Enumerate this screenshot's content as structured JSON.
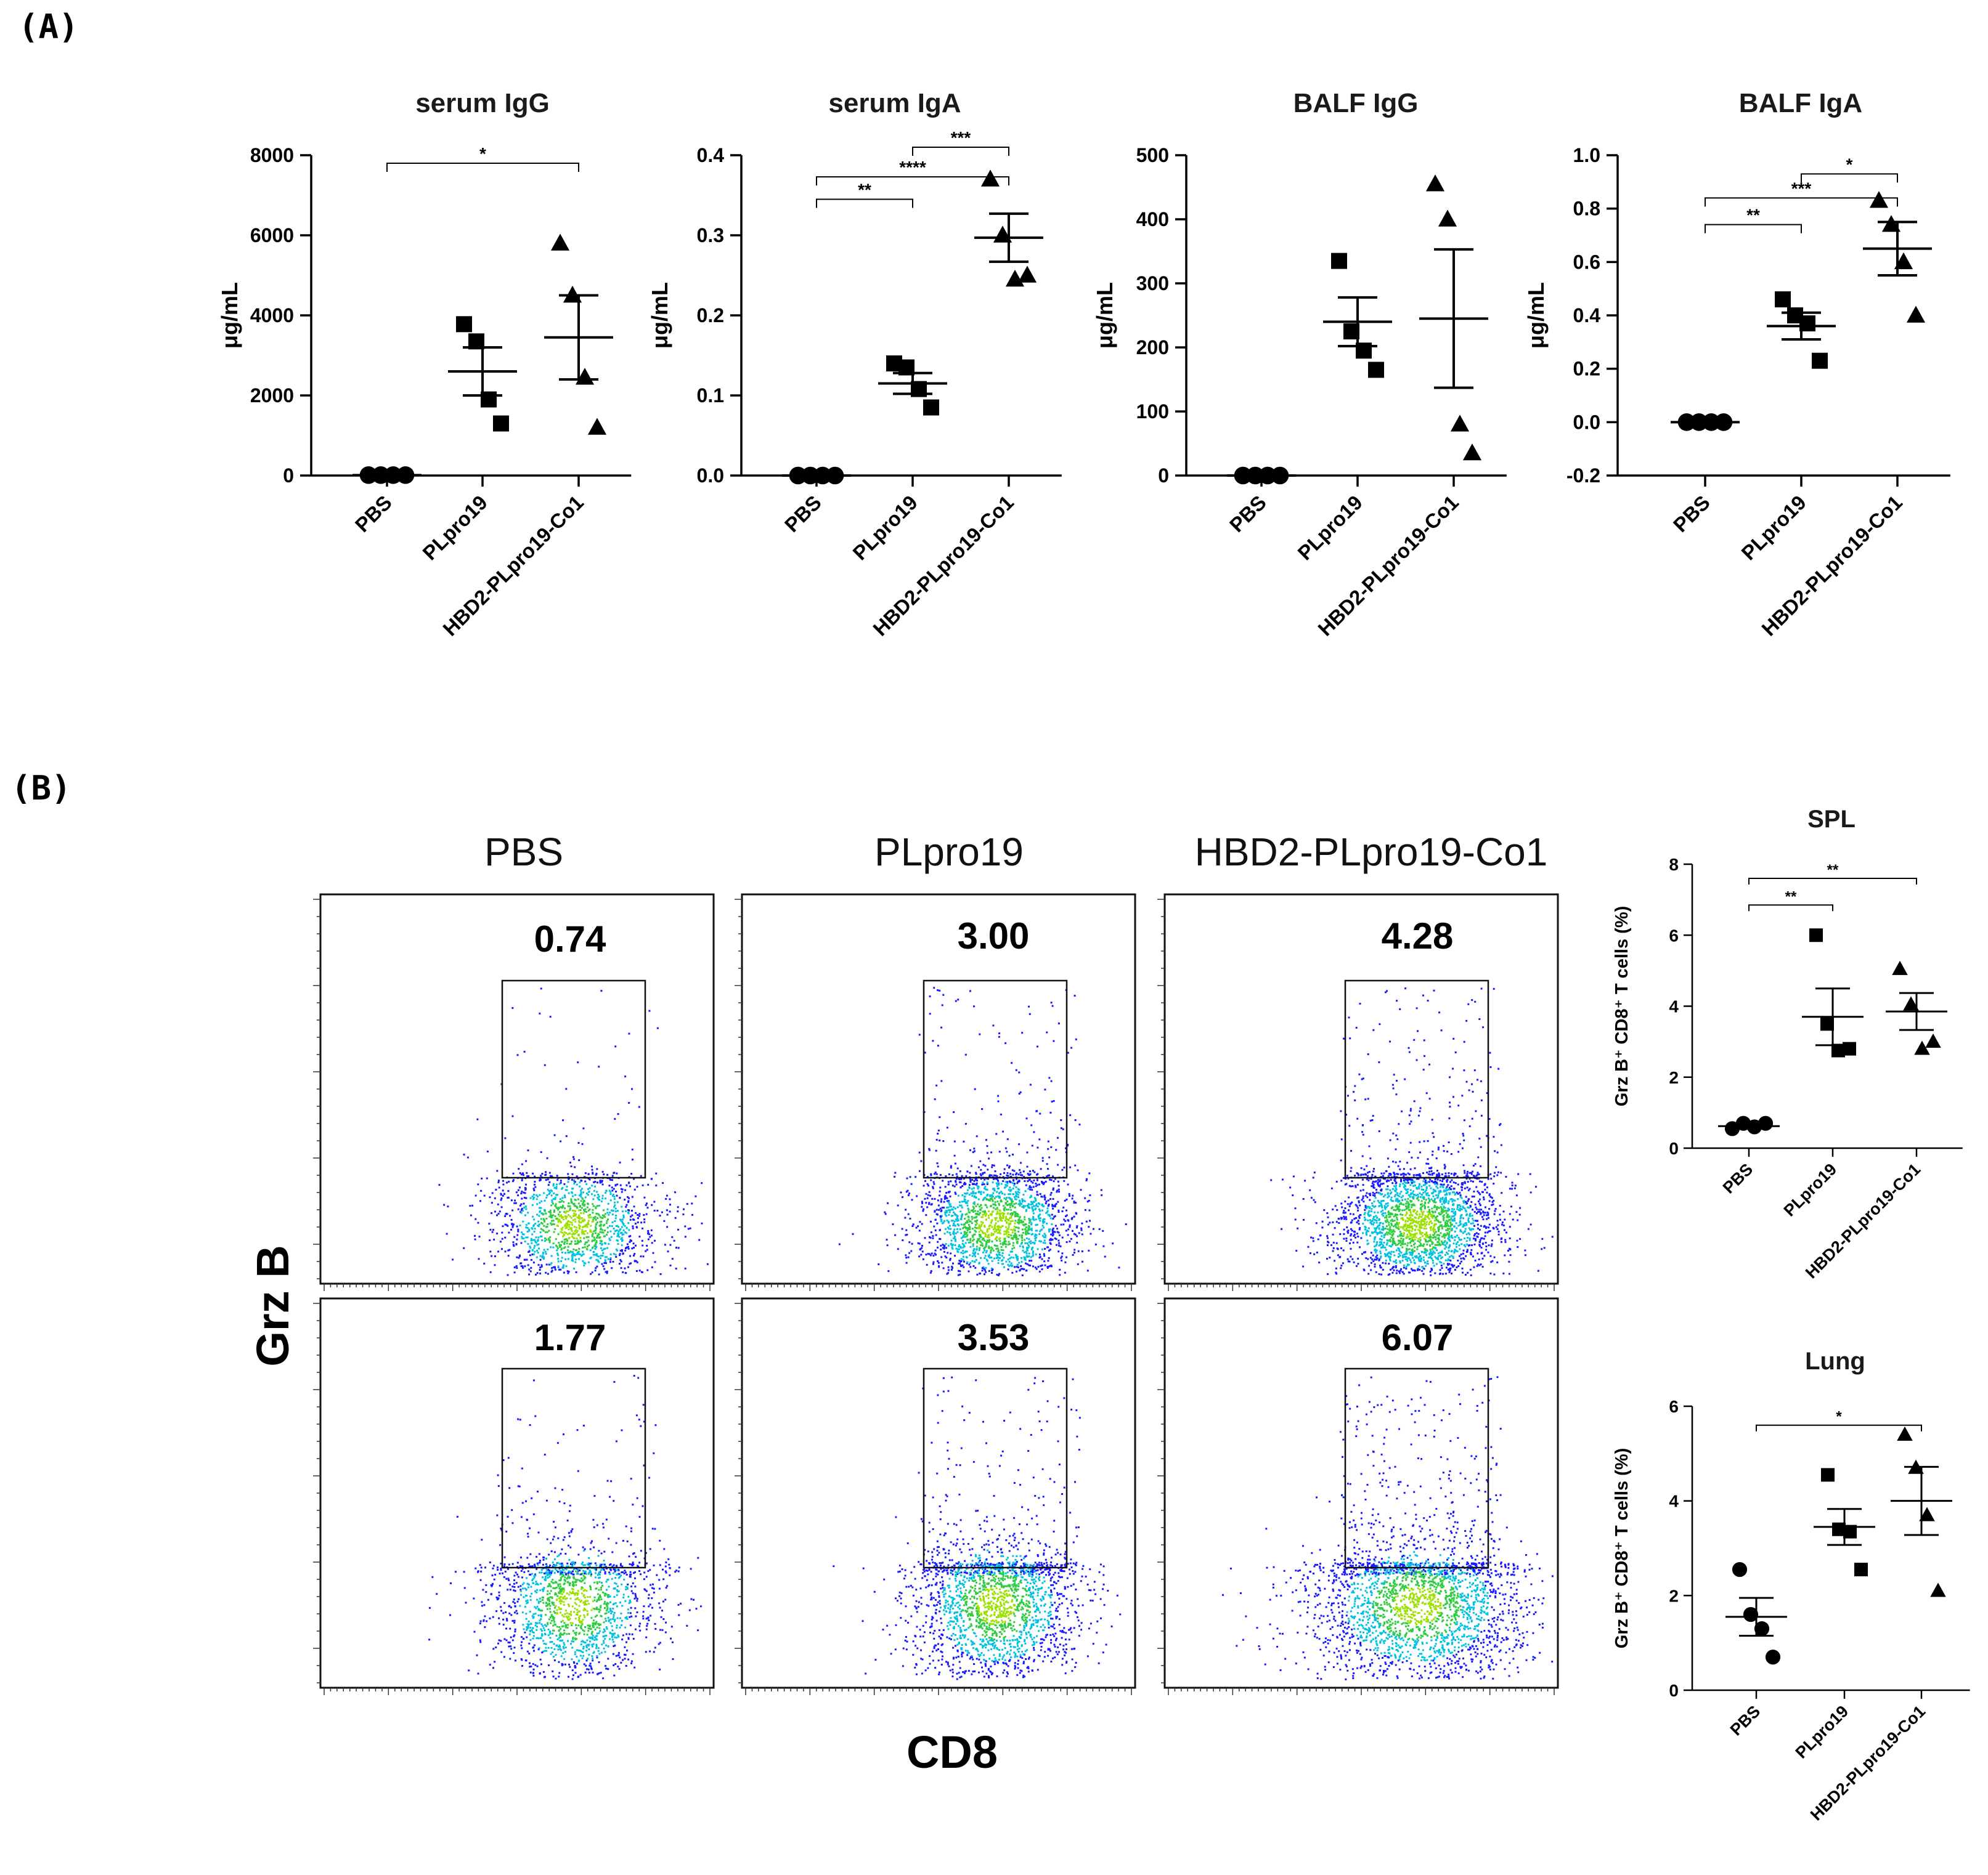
{
  "panel_labels": {
    "a": "(A)",
    "b": "(B)"
  },
  "groups": [
    "PBS",
    "PLpro19",
    "HBD2-PLpro19-Co1"
  ],
  "chart_data": [
    {
      "type": "scatter",
      "id": "serum-igg",
      "title": "serum IgG",
      "ylabel": "μg/mL",
      "categories": [
        "PBS",
        "PLpro19",
        "HBD2-PLpro19-Co1"
      ],
      "ylim": [
        0,
        8000
      ],
      "yticks": [
        "0",
        "2000",
        "4000",
        "6000",
        "8000"
      ],
      "yticks_values": [
        0,
        2000,
        4000,
        6000,
        8000
      ],
      "markers": [
        "circle",
        "square",
        "triangle"
      ],
      "points": [
        [
          10,
          10,
          10,
          10
        ],
        [
          3780,
          3350,
          1900,
          1300
        ],
        [
          5800,
          4500,
          2450,
          1200
        ]
      ],
      "mean": [
        10,
        2600,
        3450
      ],
      "sem": [
        0,
        600,
        1050
      ],
      "significance": [
        {
          "from": 0,
          "to": 2,
          "label": "*",
          "y": 7800
        }
      ]
    },
    {
      "type": "scatter",
      "id": "serum-iga",
      "title": "serum IgA",
      "ylabel": "μg/mL",
      "categories": [
        "PBS",
        "PLpro19",
        "HBD2-PLpro19-Co1"
      ],
      "ylim": [
        0,
        0.4
      ],
      "yticks": [
        "0.0",
        "0.1",
        "0.2",
        "0.3",
        "0.4"
      ],
      "yticks_values": [
        0,
        0.1,
        0.2,
        0.3,
        0.4
      ],
      "markers": [
        "circle",
        "square",
        "triangle"
      ],
      "points": [
        [
          0.0,
          0.0,
          0.0,
          0.0
        ],
        [
          0.14,
          0.135,
          0.108,
          0.085
        ],
        [
          0.37,
          0.3,
          0.245,
          0.25
        ]
      ],
      "mean": [
        0.0,
        0.115,
        0.297
      ],
      "sem": [
        0,
        0.013,
        0.03
      ],
      "significance": [
        {
          "from": 1,
          "to": 2,
          "label": "***",
          "y": 0.41
        },
        {
          "from": 0,
          "to": 2,
          "label": "****",
          "y": 0.373
        },
        {
          "from": 0,
          "to": 1,
          "label": "**",
          "y": 0.345
        }
      ]
    },
    {
      "type": "scatter",
      "id": "balf-igg",
      "title": "BALF IgG",
      "ylabel": "μg/mL",
      "categories": [
        "PBS",
        "PLpro19",
        "HBD2-PLpro19-Co1"
      ],
      "ylim": [
        0,
        500
      ],
      "yticks": [
        "0",
        "100",
        "200",
        "300",
        "400",
        "500"
      ],
      "yticks_values": [
        0,
        100,
        200,
        300,
        400,
        500
      ],
      "markers": [
        "circle",
        "square",
        "triangle"
      ],
      "points": [
        [
          0,
          0,
          0,
          0
        ],
        [
          335,
          225,
          195,
          165
        ],
        [
          455,
          400,
          80,
          35
        ]
      ],
      "mean": [
        0,
        240,
        245
      ],
      "sem": [
        0,
        38,
        108
      ],
      "significance": []
    },
    {
      "type": "scatter",
      "id": "balf-iga",
      "title": "BALF IgA",
      "ylabel": "μg/mL",
      "categories": [
        "PBS",
        "PLpro19",
        "HBD2-PLpro19-Co1"
      ],
      "ylim": [
        -0.2,
        1.0
      ],
      "yticks": [
        "-0.2",
        "0.0",
        "0.2",
        "0.4",
        "0.6",
        "0.8",
        "1.0"
      ],
      "yticks_values": [
        -0.2,
        0,
        0.2,
        0.4,
        0.6,
        0.8,
        1.0
      ],
      "markers": [
        "circle",
        "square",
        "triangle"
      ],
      "points": [
        [
          0.0,
          0.0,
          0.0,
          0.0
        ],
        [
          0.46,
          0.4,
          0.37,
          0.23
        ],
        [
          0.83,
          0.74,
          0.6,
          0.4
        ]
      ],
      "mean": [
        0.0,
        0.36,
        0.65
      ],
      "sem": [
        0,
        0.05,
        0.1
      ],
      "significance": [
        {
          "from": 1,
          "to": 2,
          "label": "*",
          "y": 0.93
        },
        {
          "from": 0,
          "to": 2,
          "label": "***",
          "y": 0.84
        },
        {
          "from": 0,
          "to": 1,
          "label": "**",
          "y": 0.74
        }
      ]
    },
    {
      "type": "scatter",
      "id": "spl",
      "title": "SPL",
      "ylabel": "Grz B⁺ CD8⁺ T cells (%)",
      "categories": [
        "PBS",
        "PLpro19",
        "HBD2-PLpro19-Co1"
      ],
      "ylim": [
        0,
        8
      ],
      "yticks": [
        "0",
        "2",
        "4",
        "6",
        "8"
      ],
      "yticks_values": [
        0,
        2,
        4,
        6,
        8
      ],
      "markers": [
        "circle",
        "square",
        "triangle"
      ],
      "points": [
        [
          0.55,
          0.7,
          0.6,
          0.7
        ],
        [
          6.0,
          3.5,
          2.75,
          2.8
        ],
        [
          5.05,
          4.05,
          2.8,
          3.0
        ]
      ],
      "mean": [
        0.62,
        3.7,
        3.85
      ],
      "sem": [
        0.05,
        0.8,
        0.52
      ],
      "significance": [
        {
          "from": 0,
          "to": 2,
          "label": "**",
          "y": 7.6
        },
        {
          "from": 0,
          "to": 1,
          "label": "**",
          "y": 6.85
        }
      ]
    },
    {
      "type": "scatter",
      "id": "lung",
      "title": "Lung",
      "ylabel": "Grz B⁺ CD8⁺ T cells (%)",
      "categories": [
        "PBS",
        "PLpro19",
        "HBD2-PLpro19-Co1"
      ],
      "ylim": [
        0,
        6
      ],
      "yticks": [
        "0",
        "2",
        "4",
        "6"
      ],
      "yticks_values": [
        0,
        2,
        4,
        6
      ],
      "markers": [
        "circle",
        "square",
        "triangle"
      ],
      "points": [
        [
          2.55,
          1.6,
          1.3,
          0.7
        ],
        [
          4.55,
          3.4,
          3.35,
          2.55
        ],
        [
          5.4,
          4.7,
          3.7,
          2.1
        ]
      ],
      "mean": [
        1.55,
        3.45,
        4.0
      ],
      "sem": [
        0.4,
        0.38,
        0.72
      ],
      "significance": [
        {
          "from": 0,
          "to": 2,
          "label": "*",
          "y": 5.6
        }
      ]
    }
  ],
  "flow": {
    "columns": [
      "PBS",
      "PLpro19",
      "HBD2-PLpro19-Co1"
    ],
    "x_axis": "CD8",
    "y_axis": "Grz B",
    "gate_percentages": [
      [
        "0.74",
        "3.00",
        "4.28"
      ],
      [
        "1.77",
        "3.53",
        "6.07"
      ]
    ],
    "palette": {
      "low": "#1a1aff",
      "mid": "#00c2e0",
      "high": "#2ecc40",
      "peak": "#9be000"
    }
  }
}
